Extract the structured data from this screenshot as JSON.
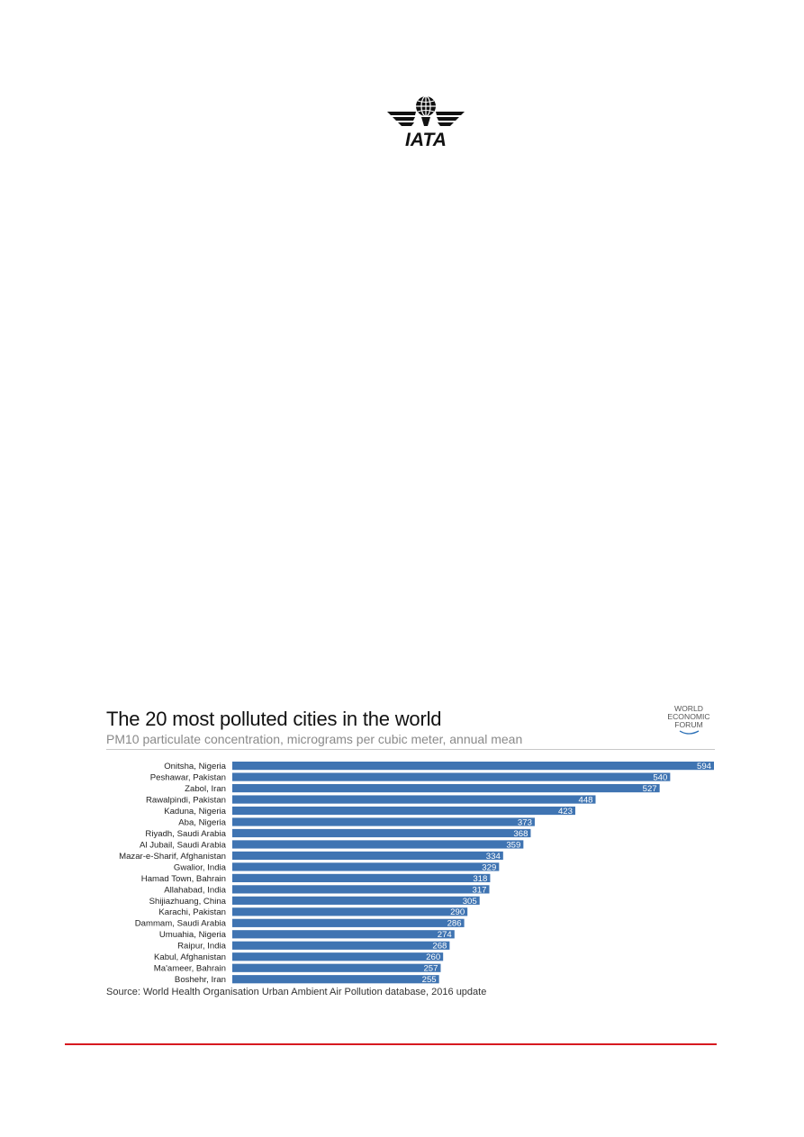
{
  "header": {
    "logo_text": "IATA"
  },
  "wef_logo": {
    "line1": "WORLD",
    "line2": "ECONOMIC",
    "line3": "FORUM"
  },
  "colors": {
    "bar": "#3f74b2",
    "footer_rule": "#d71920",
    "iata_logo": "#111111"
  },
  "chart_data": {
    "type": "bar",
    "orientation": "horizontal",
    "title": "The 20 most polluted cities in the world",
    "subtitle": "PM10 particulate concentration, micrograms per cubic meter, annual mean",
    "source": "Source: World Health Organisation Urban Ambient Air Pollution database, 2016 update",
    "categories": [
      "Onitsha, Nigeria",
      "Peshawar, Pakistan",
      "Zabol, Iran",
      "Rawalpindi, Pakistan",
      "Kaduna, Nigeria",
      "Aba, Nigeria",
      "Riyadh, Saudi Arabia",
      "Al Jubail, Saudi Arabia",
      "Mazar-e-Sharif, Afghanistan",
      "Gwalior, India",
      "Hamad Town, Bahrain",
      "Allahabad, India",
      "Shijiazhuang, China",
      "Karachi, Pakistan",
      "Dammam, Saudi Arabia",
      "Umuahia, Nigeria",
      "Raipur, India",
      "Kabul, Afghanistan",
      "Ma'ameer, Bahrain",
      "Boshehr, Iran"
    ],
    "values": [
      594,
      540,
      527,
      448,
      423,
      373,
      368,
      359,
      334,
      329,
      318,
      317,
      305,
      290,
      286,
      274,
      268,
      260,
      257,
      255
    ],
    "xlim": [
      0,
      594
    ],
    "grid": false,
    "legend": "none",
    "data_labels": "inside-end"
  }
}
